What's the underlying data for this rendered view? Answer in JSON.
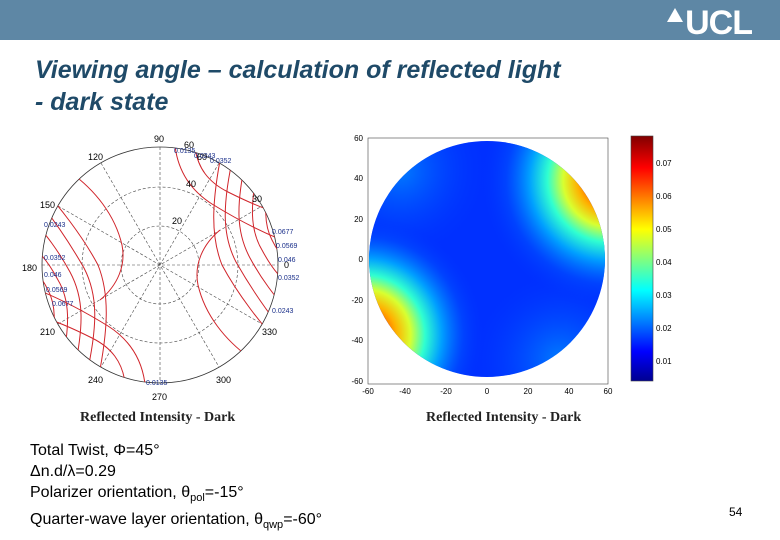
{
  "header": {
    "logo_text": "UCL",
    "title_line1": "Viewing angle – calculation of reflected light",
    "title_line2": "- dark state"
  },
  "polar_plot": {
    "caption": "Reflected Intensity - Dark",
    "angle_labels": [
      "90",
      "60",
      "30",
      "0",
      "330",
      "300",
      "270",
      "240",
      "210",
      "180",
      "150",
      "120"
    ],
    "radius_labels": [
      "20",
      "40",
      "60"
    ],
    "contour_labels_left": [
      "0.0243",
      "0.0352",
      "0.046",
      "0.0569",
      "0.0677"
    ],
    "contour_labels_right": [
      "0.0677",
      "0.0569",
      "0.046",
      "0.0352",
      "0.0243"
    ],
    "contour_labels_top": [
      "0.0135",
      "0.0243",
      "0.0352"
    ],
    "contour_label_bottom": "0.0135"
  },
  "map_plot": {
    "caption": "Reflected Intensity - Dark",
    "y_ticks": [
      "60",
      "40",
      "20",
      "0",
      "-20",
      "-40",
      "-60"
    ],
    "x_ticks": [
      "-60",
      "-40",
      "-20",
      "0",
      "20",
      "40",
      "60"
    ],
    "colorbar_ticks": [
      "0.07",
      "0.06",
      "0.05",
      "0.04",
      "0.03",
      "0.02",
      "0.01"
    ]
  },
  "params": {
    "twist": "Total Twist, Φ=45°",
    "dnd": "Δn.d/λ=0.29",
    "pol_prefix": "Polarizer orientation, θ",
    "pol_sub": "pol",
    "pol_value": "=-15°",
    "qwp_prefix": "Quarter-wave layer orientation, θ",
    "qwp_sub": "qwp",
    "qwp_value": "=-60°"
  },
  "page_number": "54",
  "colors": {
    "header_bar": "#5e87a5",
    "title": "#1f4a68",
    "contour": "#d0242a",
    "contour_label": "#1a2f8a"
  }
}
